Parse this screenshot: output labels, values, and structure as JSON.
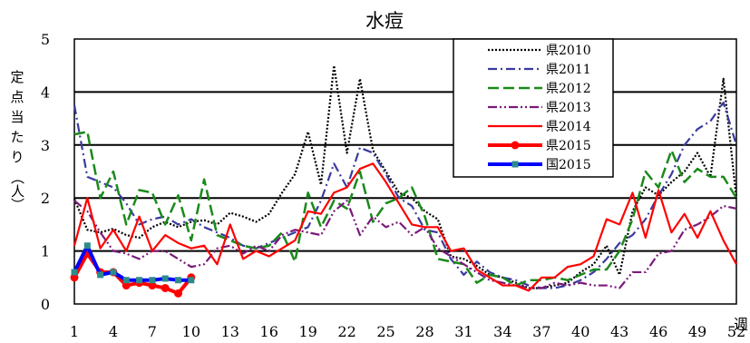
{
  "chart_data": {
    "type": "line",
    "title": "水痘",
    "xlabel": "週",
    "ylabel": "定点当たり（人）",
    "ylim": [
      0,
      5
    ],
    "yticks": [
      0,
      1,
      2,
      3,
      4,
      5
    ],
    "xlim": [
      1,
      52
    ],
    "xticks": [
      1,
      4,
      7,
      10,
      13,
      16,
      19,
      22,
      25,
      28,
      31,
      34,
      37,
      40,
      43,
      46,
      49,
      52
    ],
    "grid": "horizontal",
    "legend_position": "top-right",
    "series": [
      {
        "name": "県2010",
        "color": "#000000",
        "style": "dotted",
        "values": [
          1.98,
          1.4,
          1.35,
          1.42,
          1.3,
          1.25,
          1.45,
          1.55,
          1.45,
          1.55,
          1.58,
          1.5,
          1.72,
          1.65,
          1.55,
          1.7,
          2.1,
          2.45,
          3.25,
          2.25,
          4.5,
          2.85,
          4.25,
          2.9,
          2.5,
          2.1,
          2.0,
          1.75,
          1.6,
          0.9,
          0.85,
          0.72,
          0.55,
          0.5,
          0.4,
          0.3,
          0.3,
          0.35,
          0.4,
          0.6,
          0.75,
          1.1,
          0.55,
          1.75,
          2.2,
          2.05,
          2.3,
          2.5,
          2.85,
          2.4,
          4.25,
          2.0
        ]
      },
      {
        "name": "県2011",
        "color": "#3a3aa0",
        "style": "dashdot",
        "values": [
          3.75,
          2.4,
          2.3,
          2.2,
          1.9,
          1.5,
          1.6,
          1.65,
          1.5,
          1.6,
          1.45,
          1.35,
          1.25,
          1.1,
          1.05,
          1.15,
          1.25,
          1.35,
          1.45,
          1.95,
          2.65,
          2.2,
          2.95,
          2.85,
          2.45,
          2.0,
          1.85,
          1.4,
          1.35,
          0.85,
          0.55,
          0.8,
          0.6,
          0.5,
          0.45,
          0.35,
          0.3,
          0.3,
          0.35,
          0.45,
          0.6,
          0.85,
          1.15,
          1.3,
          1.6,
          2.05,
          2.45,
          3.0,
          3.3,
          3.45,
          3.8,
          3.0
        ]
      },
      {
        "name": "県2012",
        "color": "#1a8a1a",
        "style": "dashed",
        "values": [
          3.2,
          3.25,
          2.0,
          2.5,
          1.5,
          2.15,
          2.1,
          1.5,
          2.05,
          1.2,
          2.35,
          1.3,
          1.2,
          1.1,
          1.05,
          1.1,
          1.35,
          0.8,
          2.1,
          1.45,
          1.95,
          1.8,
          2.5,
          1.55,
          1.9,
          2.0,
          2.2,
          1.65,
          0.85,
          0.8,
          0.75,
          0.4,
          0.55,
          0.5,
          0.35,
          0.45,
          0.45,
          0.5,
          0.45,
          0.55,
          0.65,
          0.65,
          1.0,
          1.6,
          2.5,
          2.2,
          2.9,
          2.3,
          2.55,
          2.4,
          2.4,
          2.0
        ]
      },
      {
        "name": "県2013",
        "color": "#7a1a7a",
        "style": "dashdotdot",
        "values": [
          1.95,
          1.75,
          1.35,
          1.0,
          0.95,
          0.85,
          1.0,
          1.0,
          0.85,
          0.7,
          0.75,
          1.05,
          1.1,
          0.95,
          1.1,
          1.0,
          1.3,
          1.4,
          1.35,
          1.3,
          1.75,
          1.95,
          1.3,
          1.65,
          1.45,
          1.55,
          1.3,
          1.45,
          1.05,
          0.9,
          0.75,
          0.6,
          0.45,
          0.4,
          0.35,
          0.3,
          0.3,
          0.4,
          0.35,
          0.4,
          0.35,
          0.35,
          0.3,
          0.6,
          0.6,
          0.95,
          1.0,
          1.4,
          1.5,
          1.65,
          1.85,
          1.8
        ]
      },
      {
        "name": "県2014",
        "color": "#ff0000",
        "style": "solid",
        "values": [
          1.1,
          2.0,
          1.05,
          1.4,
          1.0,
          1.65,
          1.0,
          1.3,
          1.15,
          1.05,
          1.1,
          0.75,
          1.5,
          0.85,
          1.0,
          0.9,
          1.05,
          1.2,
          1.75,
          1.7,
          2.1,
          2.2,
          2.55,
          2.65,
          2.3,
          1.9,
          1.5,
          1.45,
          1.45,
          1.0,
          1.05,
          0.65,
          0.5,
          0.35,
          0.35,
          0.25,
          0.5,
          0.5,
          0.7,
          0.75,
          0.9,
          1.6,
          1.5,
          2.1,
          1.25,
          2.15,
          1.35,
          1.7,
          1.25,
          1.75,
          1.2,
          0.75
        ]
      },
      {
        "name": "県2015",
        "color": "#ff0000",
        "style": "bold-marker",
        "values": [
          0.5,
          0.95,
          0.6,
          0.6,
          0.35,
          0.4,
          0.35,
          0.3,
          0.2,
          0.5
        ]
      },
      {
        "name": "国2015",
        "color": "#0000ff",
        "style": "bold-square",
        "values": [
          0.6,
          1.1,
          0.55,
          0.6,
          0.45,
          0.45,
          0.45,
          0.48,
          0.45,
          0.45
        ]
      }
    ]
  }
}
